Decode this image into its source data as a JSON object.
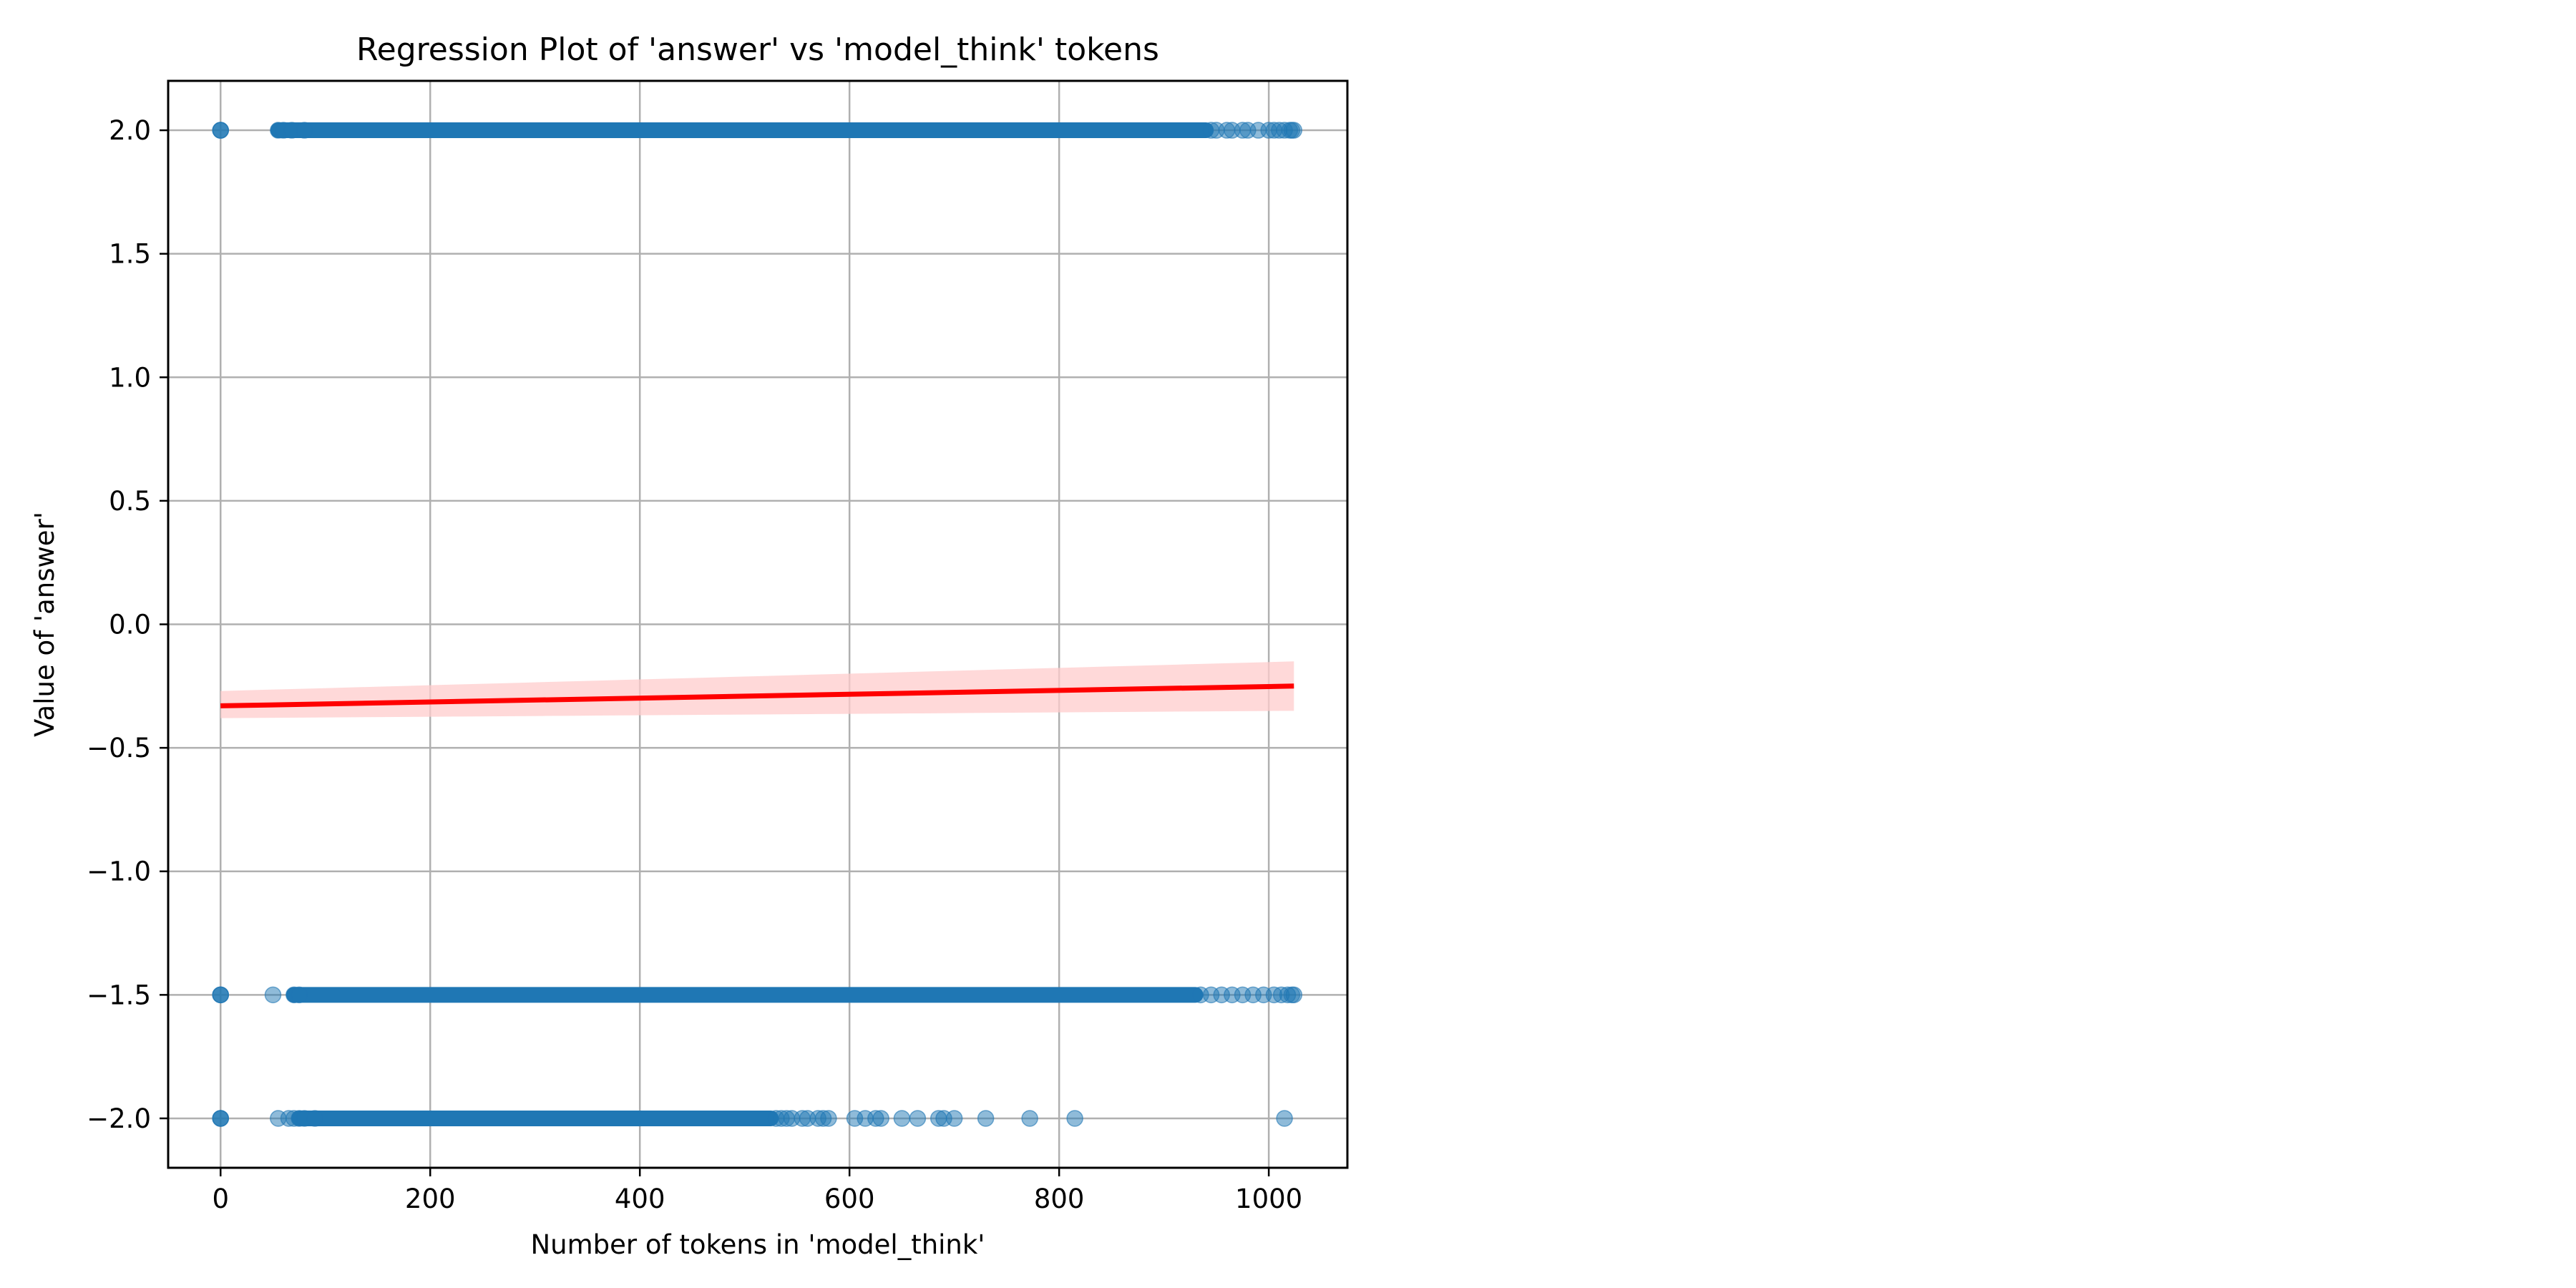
{
  "chart_data": {
    "type": "scatter",
    "title": "Regression Plot of 'answer' vs 'model_think' tokens",
    "xlabel": "Number of tokens in 'model_think'",
    "ylabel": "Value of 'answer'",
    "xlim": [
      -50,
      1075
    ],
    "ylim": [
      -2.2,
      2.2
    ],
    "x_ticks": [
      0,
      200,
      400,
      600,
      800,
      1000
    ],
    "x_tick_labels": [
      "0",
      "200",
      "400",
      "600",
      "800",
      "1000"
    ],
    "y_ticks": [
      2.0,
      1.5,
      1.0,
      0.5,
      0.0,
      -0.5,
      -1.0,
      -1.5,
      -2.0
    ],
    "y_tick_labels": [
      "2.0",
      "1.5",
      "1.0",
      "0.5",
      "0.0",
      "−0.5",
      "−1.0",
      "−1.5",
      "−2.0"
    ],
    "grid": true,
    "legend": "none",
    "series": [
      {
        "kind": "scatter",
        "y": 2.0,
        "dense_x_range": [
          55,
          940
        ],
        "sparse_x": [
          0,
          0,
          0,
          55,
          60,
          68,
          80,
          945,
          950,
          960,
          965,
          975,
          980,
          990,
          1000,
          1005,
          1010,
          1015,
          1020,
          1022,
          1024
        ]
      },
      {
        "kind": "scatter",
        "y": -1.5,
        "dense_x_range": [
          70,
          930
        ],
        "sparse_x": [
          0,
          0,
          0,
          50,
          70,
          75,
          935,
          945,
          955,
          965,
          975,
          985,
          995,
          1005,
          1012,
          1018,
          1022,
          1024
        ]
      },
      {
        "kind": "scatter",
        "y": -2.0,
        "dense_x_range": [
          75,
          525
        ],
        "sparse_x": [
          0,
          0,
          0,
          55,
          65,
          70,
          75,
          80,
          90,
          530,
          535,
          540,
          545,
          555,
          560,
          570,
          575,
          580,
          605,
          615,
          625,
          630,
          650,
          665,
          685,
          690,
          700,
          730,
          772,
          815,
          1015
        ]
      },
      {
        "kind": "regression_line",
        "x": [
          0,
          1024
        ],
        "y": [
          -0.33,
          -0.25
        ],
        "ci_lower": [
          -0.38,
          -0.35
        ],
        "ci_upper": [
          -0.27,
          -0.15
        ]
      }
    ],
    "colors": {
      "points": "#1f77b4",
      "line": "#ff0000",
      "ci_band": "#ffcccc",
      "grid": "#b0b0b0"
    }
  }
}
